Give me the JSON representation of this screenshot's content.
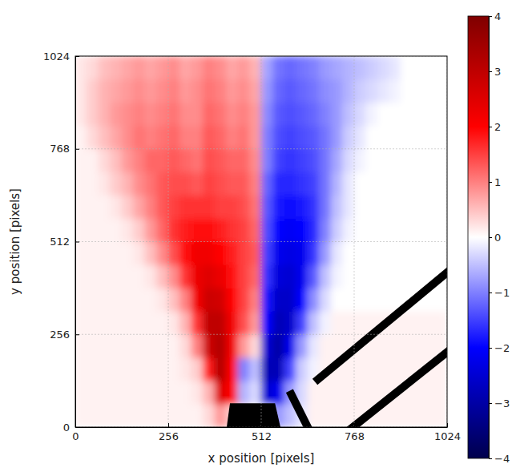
{
  "chart_data": {
    "type": "heatmap",
    "xlabel": "x position [pixels]",
    "ylabel": "y position [pixels]",
    "xlim": [
      0,
      1024
    ],
    "ylim": [
      0,
      1024
    ],
    "xticks": [
      0,
      256,
      512,
      768,
      1024
    ],
    "yticks": [
      0,
      256,
      512,
      768,
      1024
    ],
    "grid": true,
    "x": [
      16,
      48,
      80,
      112,
      144,
      176,
      208,
      240,
      272,
      304,
      336,
      368,
      400,
      432,
      464,
      496,
      528,
      560,
      592,
      624,
      656,
      688,
      720,
      752,
      784,
      816,
      848,
      880,
      912,
      944,
      976,
      1008
    ],
    "y": [
      32,
      96,
      160,
      224,
      288,
      352,
      416,
      480,
      544,
      608,
      672,
      736,
      800,
      864,
      928,
      992
    ],
    "values": [
      [
        0.1,
        0.1,
        0.1,
        0.1,
        0.1,
        0.1,
        0.1,
        0.1,
        0.1,
        0.1,
        0.1,
        0.3,
        0.8,
        0.4,
        0.2,
        0,
        -0.3,
        -0.8,
        -0.5,
        -0.2,
        0.1,
        0.1,
        0.1,
        0.1,
        0.1,
        0.1,
        0.1,
        0.1,
        0.1,
        0.1,
        0.1,
        0.1
      ],
      [
        0.1,
        0.1,
        0.1,
        0.1,
        0.1,
        0.1,
        0.1,
        0.1,
        0.1,
        0.1,
        0.2,
        0.6,
        2.5,
        2.0,
        -0.6,
        -0.3,
        -2.5,
        -2.2,
        -0.8,
        -0.3,
        0.1,
        0.1,
        0.1,
        0.1,
        0.1,
        0.1,
        0.1,
        0.1,
        0.1,
        0.1,
        0.1,
        0.1
      ],
      [
        0.1,
        0.1,
        0.1,
        0.1,
        0.1,
        0.1,
        0.1,
        0.1,
        0.1,
        0.2,
        0.4,
        1.8,
        3.2,
        2.0,
        -1.0,
        -0.5,
        -2.8,
        -2.8,
        -1.5,
        -0.4,
        -0.1,
        0.1,
        0.1,
        0.1,
        0.1,
        0.1,
        0.1,
        0.1,
        0.1,
        0.1,
        0.1,
        0.1
      ],
      [
        0.1,
        0.1,
        0.1,
        0.1,
        0.1,
        0.1,
        0.1,
        0.1,
        0.1,
        0.3,
        1.0,
        2.8,
        3.2,
        2.2,
        0.8,
        0.3,
        -2.5,
        -3.0,
        -2.2,
        -0.8,
        -0.2,
        0.1,
        0.1,
        0.1,
        0.1,
        0.1,
        0.1,
        0.1,
        0.1,
        0.1,
        0.1,
        0.1
      ],
      [
        0.1,
        0.1,
        0.1,
        0.1,
        0.1,
        0.1,
        0.1,
        0.1,
        0.2,
        0.6,
        1.6,
        3.0,
        3.0,
        2.2,
        1.4,
        0.8,
        -2.0,
        -2.8,
        -2.6,
        -1.5,
        -0.5,
        -0.1,
        0.1,
        0.1,
        0.1,
        0.1,
        0.1,
        0.1,
        0.1,
        0.1,
        0.1,
        0.1
      ],
      [
        0.1,
        0.1,
        0.1,
        0.1,
        0.1,
        0.1,
        0.1,
        0.2,
        0.5,
        1.0,
        2.2,
        2.8,
        2.7,
        2.0,
        1.5,
        1.0,
        -1.8,
        -2.6,
        -2.6,
        -2.0,
        -0.9,
        -0.3,
        0,
        0,
        0,
        0,
        0,
        0,
        0,
        0,
        0,
        0
      ],
      [
        0.1,
        0.1,
        0.1,
        0.1,
        0.1,
        0.1,
        0.2,
        0.5,
        0.9,
        1.6,
        2.3,
        2.5,
        2.3,
        1.9,
        1.5,
        1.2,
        -1.6,
        -2.4,
        -2.5,
        -2.2,
        -1.3,
        -0.5,
        -0.1,
        0,
        0,
        0,
        0,
        0,
        0,
        0,
        0,
        0
      ],
      [
        0.1,
        0.1,
        0.1,
        0.1,
        0.1,
        0.2,
        0.5,
        0.9,
        1.4,
        1.9,
        2.2,
        2.2,
        2.0,
        1.8,
        1.5,
        1.3,
        -1.5,
        -2.2,
        -2.3,
        -2.2,
        -1.6,
        -0.8,
        -0.2,
        0,
        0,
        0,
        0,
        0,
        0,
        0,
        0,
        0
      ],
      [
        0.1,
        0.1,
        0.1,
        0.1,
        0.2,
        0.4,
        0.8,
        1.2,
        1.6,
        1.8,
        1.9,
        1.9,
        1.8,
        1.6,
        1.5,
        1.2,
        -1.4,
        -2.0,
        -2.1,
        -2.0,
        -1.7,
        -1.0,
        -0.4,
        -0.1,
        0,
        0,
        0,
        0,
        0,
        0,
        0,
        0
      ],
      [
        0.1,
        0.1,
        0.1,
        0.2,
        0.4,
        0.7,
        1.0,
        1.3,
        1.5,
        1.6,
        1.6,
        1.6,
        1.5,
        1.5,
        1.4,
        1.1,
        -1.3,
        -1.8,
        -1.9,
        -1.8,
        -1.6,
        -1.1,
        -0.5,
        -0.2,
        0,
        0,
        0,
        0,
        0,
        0,
        0,
        0
      ],
      [
        0.1,
        0.1,
        0.2,
        0.4,
        0.6,
        0.9,
        1.1,
        1.3,
        1.4,
        1.4,
        1.3,
        1.5,
        1.4,
        1.3,
        1.3,
        1.0,
        -1.2,
        -1.7,
        -1.7,
        -1.6,
        -1.5,
        -1.1,
        -0.6,
        -0.2,
        0,
        0,
        0,
        0,
        0,
        0,
        0,
        0
      ],
      [
        0.1,
        0.1,
        0.3,
        0.5,
        0.8,
        1.0,
        1.2,
        1.2,
        1.3,
        1.2,
        1.1,
        1.4,
        1.3,
        1.2,
        1.2,
        0.9,
        -1.0,
        -1.5,
        -1.6,
        -1.5,
        -1.4,
        -1.1,
        -0.7,
        -0.3,
        -0.1,
        0,
        0,
        0,
        0,
        0,
        0,
        0
      ],
      [
        0.1,
        0.3,
        0.5,
        0.7,
        0.9,
        1.1,
        1.0,
        1.1,
        1.2,
        1.0,
        1.0,
        1.3,
        1.2,
        1.0,
        1.1,
        0.8,
        -1.0,
        -1.4,
        -1.5,
        -1.4,
        -1.3,
        -1.1,
        -0.8,
        -0.4,
        -0.2,
        0,
        0,
        0,
        0,
        0,
        0,
        0
      ],
      [
        0.2,
        0.4,
        0.6,
        0.8,
        0.9,
        1.0,
        0.9,
        1.0,
        1.1,
        0.9,
        0.9,
        1.2,
        1.1,
        0.9,
        1.0,
        0.8,
        -0.9,
        -1.3,
        -1.4,
        -1.3,
        -1.2,
        -1.0,
        -0.8,
        -0.5,
        -0.3,
        -0.1,
        0,
        0,
        0,
        0,
        0,
        0
      ],
      [
        0.2,
        0.4,
        0.6,
        0.7,
        0.8,
        0.9,
        0.8,
        0.9,
        1.0,
        0.8,
        0.9,
        1.1,
        1.0,
        0.8,
        0.9,
        0.7,
        -0.8,
        -1.2,
        -1.3,
        -1.2,
        -1.1,
        -0.9,
        -0.8,
        -0.6,
        -0.4,
        -0.3,
        -0.2,
        -0.1,
        0,
        0,
        0,
        0
      ],
      [
        0.2,
        0.3,
        0.5,
        0.6,
        0.7,
        0.8,
        0.7,
        0.8,
        0.9,
        0.7,
        0.8,
        1.0,
        0.9,
        0.7,
        0.8,
        0.6,
        -0.7,
        -1.1,
        -1.2,
        -1.1,
        -1.0,
        -0.8,
        -0.7,
        -0.6,
        -0.5,
        -0.4,
        -0.3,
        -0.2,
        0,
        0,
        0,
        0
      ]
    ],
    "colorbar": {
      "range": [
        -4,
        4
      ],
      "ticks": [
        {
          "value": -4,
          "label": "−4"
        },
        {
          "value": -3,
          "label": "−3"
        },
        {
          "value": -2,
          "label": "−2"
        },
        {
          "value": -1,
          "label": "−1"
        },
        0,
        1,
        2,
        3,
        4
      ]
    }
  }
}
